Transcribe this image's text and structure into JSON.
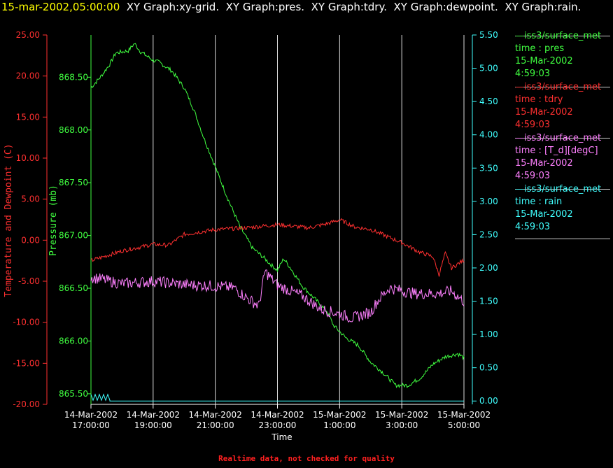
{
  "title": {
    "timestamp": "15-mar-2002,05:00:00",
    "graphs": "XY Graph:xy-grid.  XY Graph:pres.  XY Graph:tdry.  XY Graph:dewpoint.  XY Graph:rain."
  },
  "footer_note": "Realtime data, not checked for quality",
  "legend": [
    {
      "line1": "—iss3/surface_met",
      "line2": "time : pres",
      "line3": "15-Mar-2002",
      "line4": "4:59:03",
      "color": "#40ff40"
    },
    {
      "line1": "—iss3/surface_met",
      "line2": "time : tdry",
      "line3": "15-Mar-2002",
      "line4": "4:59:03",
      "color": "#ff3030"
    },
    {
      "line1": "—iss3/surface_met",
      "line2": "time : [T_d][degC]",
      "line3": "15-Mar-2002",
      "line4": "4:59:03",
      "color": "#ff80ff"
    },
    {
      "line1": "—iss3/surface_met",
      "line2": "time : rain",
      "line3": "15-Mar-2002",
      "line4": "4:59:03",
      "color": "#40ffff"
    }
  ],
  "chart_data": {
    "type": "line",
    "xlabel": "Time",
    "x_tick_labels": [
      [
        "14-Mar-2002",
        "17:00:00"
      ],
      [
        "14-Mar-2002",
        "19:00:00"
      ],
      [
        "14-Mar-2002",
        "21:00:00"
      ],
      [
        "14-Mar-2002",
        "23:00:00"
      ],
      [
        "15-Mar-2002",
        "1:00:00"
      ],
      [
        "15-Mar-2002",
        "3:00:00"
      ],
      [
        "15-Mar-2002",
        "5:00:00"
      ]
    ],
    "x_range": [
      "14-Mar-2002 17:00:00",
      "15-Mar-2002 05:00:00"
    ],
    "axes": {
      "temperature": {
        "label": "Temperature and Dewpoint (C)",
        "ylim": [
          -20,
          25
        ],
        "ticks": [
          "25.00",
          "20.00",
          "15.00",
          "10.00",
          "5.00",
          "0.00",
          "-5.00",
          "-10.00",
          "-15.00",
          "-20.00"
        ],
        "color": "#ff3030"
      },
      "pressure": {
        "label": "Pressure (mb)",
        "ylim": [
          865.4,
          868.9
        ],
        "ticks": [
          "868.50",
          "868.00",
          "867.50",
          "867.00",
          "866.50",
          "866.00",
          "865.50"
        ],
        "color": "#40ff40"
      },
      "rain": {
        "ylim": [
          -0.05,
          5.5
        ],
        "ticks": [
          "5.50",
          "5.00",
          "4.50",
          "4.00",
          "3.50",
          "3.00",
          "2.50",
          "2.00",
          "1.50",
          "1.00",
          "0.50",
          "0.00"
        ],
        "color": "#40ffff"
      }
    },
    "series": [
      {
        "name": "pres",
        "axis": "pressure",
        "color": "#40ff40",
        "noise": 0.02,
        "points": [
          [
            0,
            868.4
          ],
          [
            0.3,
            868.5
          ],
          [
            0.6,
            868.62
          ],
          [
            0.8,
            868.73
          ],
          [
            1.0,
            868.74
          ],
          [
            1.2,
            868.75
          ],
          [
            1.4,
            868.82
          ],
          [
            1.6,
            868.74
          ],
          [
            2.0,
            868.66
          ],
          [
            2.2,
            868.64
          ],
          [
            2.6,
            868.56
          ],
          [
            3.0,
            868.4
          ],
          [
            3.3,
            868.2
          ],
          [
            3.6,
            867.95
          ],
          [
            4.0,
            867.65
          ],
          [
            4.4,
            867.35
          ],
          [
            4.8,
            867.08
          ],
          [
            5.2,
            866.88
          ],
          [
            5.6,
            866.78
          ],
          [
            5.8,
            866.72
          ],
          [
            6.0,
            866.67
          ],
          [
            6.2,
            866.78
          ],
          [
            6.4,
            866.7
          ],
          [
            6.8,
            866.52
          ],
          [
            7.2,
            866.4
          ],
          [
            7.6,
            866.28
          ],
          [
            7.8,
            866.15
          ],
          [
            8.2,
            866.03
          ],
          [
            8.6,
            865.96
          ],
          [
            9.0,
            865.8
          ],
          [
            9.4,
            865.7
          ],
          [
            9.8,
            865.58
          ],
          [
            10.2,
            865.58
          ],
          [
            10.6,
            865.65
          ],
          [
            11.0,
            865.78
          ],
          [
            11.4,
            865.85
          ],
          [
            11.8,
            865.88
          ],
          [
            12.0,
            865.84
          ]
        ]
      },
      {
        "name": "tdry",
        "axis": "temperature",
        "color": "#ff3030",
        "noise": 0.25,
        "points": [
          [
            0,
            -2.5
          ],
          [
            1.0,
            -1.3
          ],
          [
            2.0,
            -0.5
          ],
          [
            2.5,
            -0.6
          ],
          [
            3.0,
            0.7
          ],
          [
            4.0,
            1.3
          ],
          [
            5.0,
            1.5
          ],
          [
            6.0,
            1.9
          ],
          [
            7.0,
            1.5
          ],
          [
            7.6,
            2.0
          ],
          [
            8.0,
            2.5
          ],
          [
            8.5,
            1.6
          ],
          [
            9.0,
            1.3
          ],
          [
            10.0,
            -0.3
          ],
          [
            10.6,
            -1.5
          ],
          [
            11.0,
            -2.0
          ],
          [
            11.2,
            -4.2
          ],
          [
            11.4,
            -1.6
          ],
          [
            11.6,
            -3.4
          ],
          [
            12.0,
            -2.4
          ]
        ]
      },
      {
        "name": "[T_d][degC]",
        "axis": "temperature",
        "color": "#ff80ff",
        "noise": 0.7,
        "points": [
          [
            0,
            -4.5
          ],
          [
            1.0,
            -5.3
          ],
          [
            2.0,
            -5.0
          ],
          [
            3.0,
            -5.4
          ],
          [
            4.0,
            -5.6
          ],
          [
            4.6,
            -5.8
          ],
          [
            5.0,
            -7.0
          ],
          [
            5.4,
            -8.0
          ],
          [
            5.6,
            -3.8
          ],
          [
            6.0,
            -5.5
          ],
          [
            6.8,
            -6.8
          ],
          [
            7.4,
            -8.4
          ],
          [
            8.0,
            -9.0
          ],
          [
            8.4,
            -9.5
          ],
          [
            9.0,
            -8.8
          ],
          [
            9.2,
            -7.5
          ],
          [
            9.6,
            -5.8
          ],
          [
            10.4,
            -6.5
          ],
          [
            11.2,
            -6.5
          ],
          [
            11.6,
            -6.2
          ],
          [
            12.0,
            -7.5
          ]
        ]
      },
      {
        "name": "rain",
        "axis": "rain",
        "color": "#40ffff",
        "spiky": true,
        "points": [
          [
            0,
            0.1
          ],
          [
            0.38,
            0.1
          ],
          [
            0.38,
            0.0
          ],
          [
            12.0,
            0.0
          ]
        ]
      }
    ]
  }
}
